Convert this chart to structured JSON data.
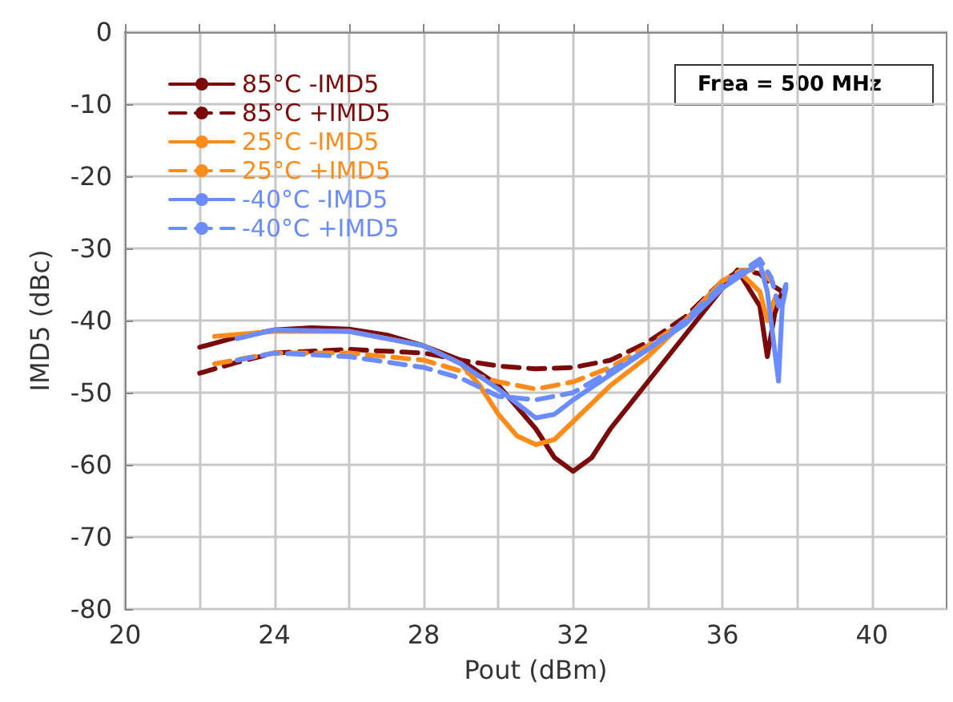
{
  "chart_data": {
    "type": "line",
    "xlabel": "Pout (dBm)",
    "ylabel": "IMD5 (dBc)",
    "xlim": [
      20,
      42
    ],
    "xticks": [
      20,
      {
        "value": 22,
        "label": null
      },
      24,
      {
        "value": 26,
        "label": null
      },
      28,
      {
        "value": 30,
        "label": null
      },
      32,
      {
        "value": 34,
        "label": null
      },
      36,
      {
        "value": 38,
        "label": null
      },
      40
    ],
    "ylim": [
      -80,
      0
    ],
    "yticks": [
      -80,
      -70,
      -60,
      -50,
      -40,
      -30,
      -20,
      -10,
      0
    ],
    "grid": true,
    "legend": "top left",
    "marker": "none",
    "annotations": [
      "Frea = 500 MHz"
    ],
    "series": [
      {
        "name": "85°C -IMD5",
        "color": "#7b0a0a",
        "line_style": "solid",
        "x": [
          22,
          23,
          24,
          25,
          26,
          27,
          28,
          29,
          30,
          31,
          31.5,
          32,
          32.5,
          33,
          34,
          35,
          36,
          36.4,
          37,
          37.2,
          37.4,
          37.6
        ],
        "values": [
          -43.7,
          -42.3,
          -41.3,
          -41,
          -41.2,
          -42,
          -43.5,
          -45.5,
          -49,
          -55,
          -59,
          -60.9,
          -59,
          -55,
          -48.5,
          -42,
          -35.5,
          -33,
          -38,
          -45,
          -39,
          -36
        ]
      },
      {
        "name": "85°C +IMD5",
        "color": "#7b0a0a",
        "line_style": "dashed",
        "x": [
          22,
          23,
          24,
          26,
          28,
          29,
          30,
          31,
          32,
          33,
          34,
          35,
          36,
          36.5,
          37,
          37.3,
          37.6
        ],
        "values": [
          -47.3,
          -45.8,
          -44.5,
          -44,
          -44.5,
          -45.5,
          -46.3,
          -46.7,
          -46.5,
          -45.5,
          -43,
          -39.5,
          -34.5,
          -33,
          -33.5,
          -35,
          -36
        ]
      },
      {
        "name": "25°C -IMD5",
        "color": "#ff8c1a",
        "line_style": "solid",
        "x": [
          22.4,
          24,
          26,
          28,
          29,
          29.5,
          30,
          30.5,
          31,
          31.5,
          32,
          33,
          34,
          35,
          36,
          36.5,
          37,
          37.2,
          37.4
        ],
        "values": [
          -42.2,
          -41.5,
          -41.5,
          -43.5,
          -46,
          -49,
          -53,
          -56,
          -57.2,
          -56.5,
          -54,
          -49,
          -45,
          -40,
          -34.5,
          -33.5,
          -36,
          -40,
          -37
        ]
      },
      {
        "name": "25°C +IMD5",
        "color": "#ff8c1a",
        "line_style": "dashed",
        "x": [
          22.4,
          24,
          26,
          28,
          29,
          30,
          31,
          32,
          33,
          34,
          35,
          36,
          36.5,
          37,
          37.4
        ],
        "values": [
          -46,
          -44.5,
          -44.5,
          -45.5,
          -47,
          -48.5,
          -49.5,
          -48.5,
          -46.5,
          -43.5,
          -40,
          -34.5,
          -33,
          -33,
          -35
        ]
      },
      {
        "name": "-40°C -IMD5",
        "color": "#6b8cff",
        "line_style": "solid",
        "x": [
          23,
          24,
          26,
          28,
          29,
          30,
          31,
          31.5,
          32,
          33,
          34,
          35,
          36,
          37,
          37.2,
          37.5,
          37.6,
          37.7
        ],
        "values": [
          -42.5,
          -41.3,
          -41.5,
          -43.5,
          -46,
          -49.5,
          -53.5,
          -53,
          -51,
          -47.5,
          -44,
          -40.5,
          -35.5,
          -32,
          -36,
          -48.4,
          -38,
          -35.5
        ]
      },
      {
        "name": "-40°C +IMD5",
        "color": "#6b8cff",
        "line_style": "dashed",
        "x": [
          23,
          24,
          26,
          28,
          29,
          30,
          31,
          32,
          33,
          34,
          35,
          36,
          37,
          37.3,
          37.5,
          37.7
        ],
        "values": [
          -45.5,
          -44.5,
          -45,
          -46.5,
          -48,
          -50.5,
          -51,
          -50,
          -47,
          -44,
          -40,
          -35,
          -31.5,
          -34,
          -38,
          -35
        ]
      }
    ]
  }
}
